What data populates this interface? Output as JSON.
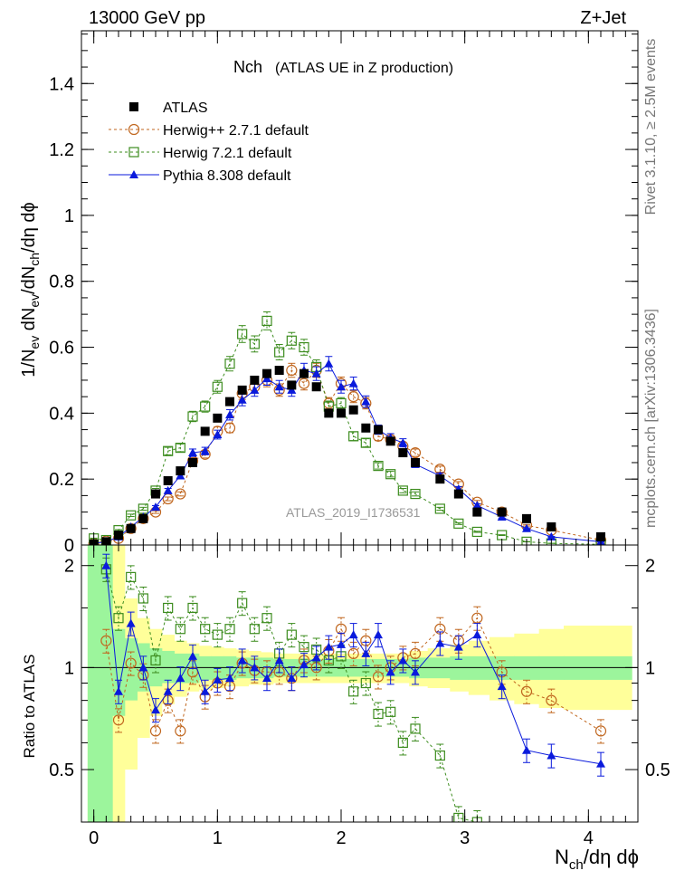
{
  "header": {
    "left": "13000 GeV pp",
    "right": "Z+Jet"
  },
  "side": {
    "rivet": "Rivet 3.1.10, ≥ 2.5M events",
    "mcplots": "mcplots.cern.ch [arXiv:1306.3436]"
  },
  "main": {
    "title_main": "Nch",
    "title_sub": "(ATLAS UE in Z production)",
    "watermark": "ATLAS_2019_I1736531"
  },
  "colors": {
    "atlas": "#000000",
    "herwigpp": "#c0661e",
    "herwig7": "#3c8c1e",
    "pythia": "#0a1adc",
    "band1": "#9cf59c",
    "band2": "#ffff9a"
  },
  "chart_data": [
    {
      "type": "scatter",
      "ylabel": "1/N_ev dN_ev/dN_ch/dη dϕ",
      "xlim": [
        -0.1,
        4.4
      ],
      "ylim": [
        0,
        1.56
      ],
      "yticks": [
        "0",
        "0.2",
        "0.4",
        "0.6",
        "0.8",
        "1",
        "1.2",
        "1.4"
      ],
      "series": [
        {
          "name": "ATLAS",
          "x": [
            0.0,
            0.1,
            0.2,
            0.3,
            0.4,
            0.5,
            0.6,
            0.7,
            0.8,
            0.9,
            1.0,
            1.1,
            1.2,
            1.3,
            1.4,
            1.5,
            1.6,
            1.7,
            1.8,
            1.9,
            2.0,
            2.1,
            2.2,
            2.3,
            2.4,
            2.5,
            2.6,
            2.8,
            2.95,
            3.1,
            3.3,
            3.5,
            3.7,
            4.1
          ],
          "y": [
            0.003,
            0.01,
            0.03,
            0.05,
            0.08,
            0.155,
            0.195,
            0.225,
            0.25,
            0.345,
            0.385,
            0.435,
            0.47,
            0.5,
            0.52,
            0.53,
            0.485,
            0.52,
            0.48,
            0.4,
            0.4,
            0.41,
            0.355,
            0.35,
            0.315,
            0.28,
            0.25,
            0.2,
            0.155,
            0.1,
            0.1,
            0.08,
            0.055,
            0.025
          ]
        },
        {
          "name": "Herwig++ 2.7.1 default",
          "x": [
            0.0,
            0.1,
            0.2,
            0.3,
            0.4,
            0.5,
            0.6,
            0.7,
            0.8,
            0.9,
            1.0,
            1.1,
            1.2,
            1.3,
            1.4,
            1.5,
            1.6,
            1.7,
            1.8,
            1.9,
            2.0,
            2.1,
            2.2,
            2.3,
            2.4,
            2.5,
            2.6,
            2.8,
            2.95,
            3.1,
            3.3,
            3.5,
            3.7,
            4.1
          ],
          "y": [
            0.004,
            0.012,
            0.02,
            0.05,
            0.08,
            0.1,
            0.14,
            0.155,
            0.255,
            0.275,
            0.345,
            0.355,
            0.46,
            0.48,
            0.5,
            0.47,
            0.53,
            0.49,
            0.53,
            0.43,
            0.49,
            0.45,
            0.43,
            0.33,
            0.32,
            0.3,
            0.28,
            0.23,
            0.185,
            0.13,
            0.1,
            0.06,
            0.045,
            0.015
          ]
        },
        {
          "name": "Herwig 7.2.1 default",
          "x": [
            0.0,
            0.1,
            0.2,
            0.3,
            0.4,
            0.5,
            0.6,
            0.7,
            0.8,
            0.9,
            1.0,
            1.1,
            1.2,
            1.3,
            1.4,
            1.5,
            1.6,
            1.7,
            1.8,
            1.9,
            2.0,
            2.1,
            2.2,
            2.3,
            2.4,
            2.5,
            2.6,
            2.8,
            2.95,
            3.1,
            3.3,
            3.5,
            3.7,
            4.1
          ],
          "y": [
            0.02,
            0.015,
            0.045,
            0.09,
            0.11,
            0.165,
            0.285,
            0.295,
            0.39,
            0.42,
            0.48,
            0.55,
            0.64,
            0.61,
            0.68,
            0.585,
            0.62,
            0.6,
            0.54,
            0.42,
            0.43,
            0.33,
            0.31,
            0.24,
            0.215,
            0.165,
            0.155,
            0.11,
            0.065,
            0.04,
            0.03,
            0.01,
            0.005,
            0.002
          ]
        },
        {
          "name": "Pythia 8.308 default",
          "x": [
            0.0,
            0.1,
            0.2,
            0.3,
            0.4,
            0.5,
            0.6,
            0.7,
            0.8,
            0.9,
            1.0,
            1.1,
            1.2,
            1.3,
            1.4,
            1.5,
            1.6,
            1.7,
            1.8,
            1.9,
            2.0,
            2.1,
            2.2,
            2.3,
            2.4,
            2.5,
            2.6,
            2.8,
            2.95,
            3.1,
            3.3,
            3.5,
            3.7,
            4.1
          ],
          "y": [
            0.005,
            0.01,
            0.025,
            0.055,
            0.085,
            0.115,
            0.165,
            0.21,
            0.28,
            0.285,
            0.335,
            0.395,
            0.44,
            0.47,
            0.505,
            0.48,
            0.47,
            0.53,
            0.52,
            0.55,
            0.48,
            0.49,
            0.435,
            0.35,
            0.325,
            0.31,
            0.245,
            0.21,
            0.17,
            0.12,
            0.085,
            0.05,
            0.025,
            0.01
          ]
        }
      ]
    },
    {
      "type": "scatter",
      "ylabel": "Ratio to ATLAS",
      "xlabel": "N_ch/dη dϕ",
      "xlim": [
        -0.1,
        4.4
      ],
      "ylim": [
        0.35,
        2.3
      ],
      "yticks": [
        "0.5",
        "1",
        "2"
      ],
      "xticks": [
        "0",
        "1",
        "2",
        "3",
        "4"
      ],
      "reference_line": 1,
      "bands": {
        "x_edges": [
          -0.05,
          0.05,
          0.15,
          0.25,
          0.35,
          0.45,
          0.55,
          0.65,
          0.75,
          0.85,
          0.95,
          1.05,
          1.15,
          1.25,
          1.35,
          1.45,
          1.55,
          1.65,
          1.75,
          1.85,
          1.95,
          2.05,
          2.15,
          2.25,
          2.35,
          2.45,
          2.55,
          2.7,
          2.88,
          3.03,
          3.2,
          3.4,
          3.6,
          3.8,
          4.35
        ],
        "green_lo": [
          0.35,
          0.35,
          0.72,
          0.8,
          0.85,
          0.88,
          0.9,
          0.9,
          0.9,
          0.92,
          0.92,
          0.92,
          0.93,
          0.93,
          0.93,
          0.94,
          0.94,
          0.94,
          0.94,
          0.94,
          0.94,
          0.94,
          0.94,
          0.94,
          0.94,
          0.94,
          0.93,
          0.93,
          0.92,
          0.92,
          0.92,
          0.92,
          0.92,
          0.92
        ],
        "green_hi": [
          2.3,
          2.3,
          1.3,
          1.22,
          1.18,
          1.14,
          1.12,
          1.1,
          1.1,
          1.08,
          1.08,
          1.08,
          1.07,
          1.07,
          1.07,
          1.06,
          1.06,
          1.06,
          1.06,
          1.06,
          1.06,
          1.06,
          1.06,
          1.06,
          1.06,
          1.06,
          1.07,
          1.07,
          1.08,
          1.08,
          1.08,
          1.08,
          1.08,
          1.08
        ],
        "yellow_lo": [
          0.35,
          0.35,
          0.35,
          0.5,
          0.62,
          0.72,
          0.78,
          0.82,
          0.85,
          0.86,
          0.87,
          0.88,
          0.88,
          0.89,
          0.89,
          0.9,
          0.9,
          0.9,
          0.9,
          0.9,
          0.9,
          0.9,
          0.9,
          0.9,
          0.9,
          0.9,
          0.88,
          0.87,
          0.85,
          0.83,
          0.8,
          0.78,
          0.76,
          0.75
        ],
        "yellow_hi": [
          2.3,
          2.3,
          2.3,
          1.6,
          1.4,
          1.3,
          1.25,
          1.2,
          1.18,
          1.16,
          1.15,
          1.14,
          1.13,
          1.12,
          1.11,
          1.1,
          1.1,
          1.1,
          1.1,
          1.1,
          1.1,
          1.1,
          1.1,
          1.1,
          1.1,
          1.1,
          1.12,
          1.14,
          1.17,
          1.2,
          1.23,
          1.26,
          1.3,
          1.33
        ]
      },
      "series": [
        {
          "name": "Herwig++ 2.7.1 default",
          "x": [
            0.1,
            0.2,
            0.3,
            0.4,
            0.5,
            0.6,
            0.7,
            0.8,
            0.9,
            1.0,
            1.1,
            1.2,
            1.3,
            1.4,
            1.5,
            1.6,
            1.7,
            1.8,
            1.9,
            2.0,
            2.1,
            2.2,
            2.3,
            2.4,
            2.5,
            2.6,
            2.8,
            2.95,
            3.1,
            3.3,
            3.5,
            3.7,
            4.1
          ],
          "y": [
            1.2,
            0.7,
            1.03,
            0.95,
            0.65,
            0.8,
            0.65,
            0.97,
            0.82,
            0.9,
            0.88,
            1.03,
            0.98,
            0.97,
            0.97,
            0.93,
            1.05,
            1.0,
            1.12,
            1.3,
            1.1,
            1.2,
            0.94,
            1.0,
            1.07,
            1.1,
            1.3,
            1.2,
            1.4,
            0.97,
            0.85,
            0.8,
            0.65
          ]
        },
        {
          "name": "Herwig 7.2.1 default",
          "x": [
            0.1,
            0.2,
            0.3,
            0.4,
            0.5,
            0.6,
            0.7,
            0.8,
            0.9,
            1.0,
            1.1,
            1.2,
            1.3,
            1.4,
            1.5,
            1.6,
            1.7,
            1.8,
            1.9,
            2.0,
            2.1,
            2.2,
            2.3,
            2.4,
            2.5,
            2.6,
            2.8,
            2.95,
            3.1
          ],
          "y": [
            1.95,
            1.4,
            1.85,
            1.6,
            1.05,
            1.5,
            1.3,
            1.5,
            1.3,
            1.25,
            1.3,
            1.55,
            1.3,
            1.4,
            1.1,
            1.25,
            1.15,
            1.13,
            1.05,
            1.08,
            0.85,
            0.9,
            0.73,
            0.74,
            0.6,
            0.66,
            0.55,
            0.36,
            0.35
          ]
        },
        {
          "name": "Pythia 8.308 default",
          "x": [
            0.1,
            0.2,
            0.3,
            0.4,
            0.5,
            0.6,
            0.7,
            0.8,
            0.9,
            1.0,
            1.1,
            1.2,
            1.3,
            1.4,
            1.5,
            1.6,
            1.7,
            1.8,
            1.9,
            2.0,
            2.1,
            2.2,
            2.3,
            2.4,
            2.5,
            2.6,
            2.8,
            2.95,
            3.1,
            3.3,
            3.5,
            3.7,
            4.1
          ],
          "y": [
            2.0,
            0.85,
            1.35,
            1.0,
            0.75,
            0.85,
            0.93,
            1.08,
            0.85,
            0.92,
            0.93,
            1.05,
            1.0,
            0.93,
            1.05,
            0.93,
            1.02,
            1.07,
            1.15,
            1.17,
            1.25,
            1.1,
            1.25,
            0.97,
            1.05,
            0.97,
            1.18,
            1.15,
            1.25,
            0.88,
            0.57,
            0.55,
            0.52
          ]
        }
      ]
    }
  ]
}
